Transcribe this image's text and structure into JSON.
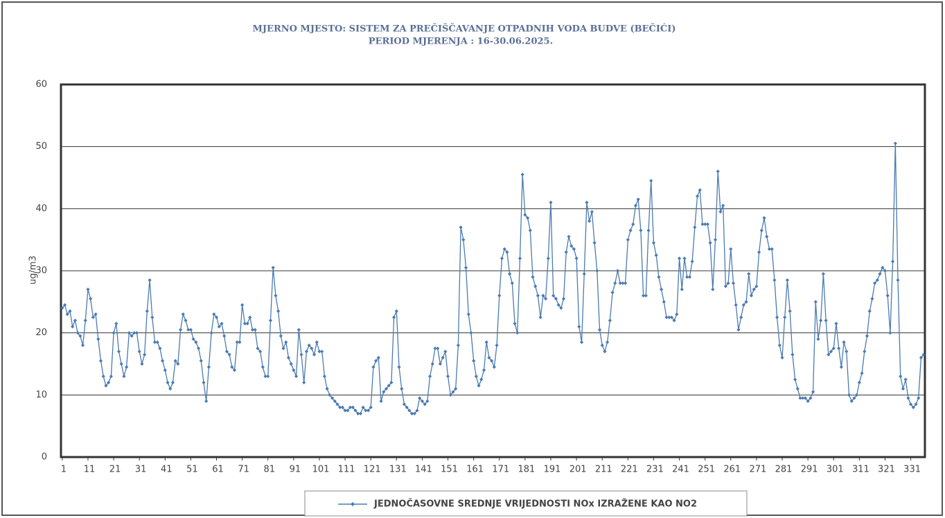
{
  "chart_data": {
    "type": "line",
    "title": "MJERNO MJESTO: SISTEM ZA PREČIŠČAVANJE  OTPADNIH VODA BUDVE (BEČIĆI)",
    "subtitle": "PERIOD MJERENJA : 16-30.06.2025.",
    "ylabel": "ug/m3",
    "x": [
      1,
      2,
      3,
      4,
      5,
      6,
      7,
      8,
      9,
      10,
      11,
      12,
      13,
      14,
      15,
      16,
      17,
      18,
      19,
      20,
      21,
      22,
      23,
      24,
      25,
      26,
      27,
      28,
      29,
      30,
      31,
      32,
      33,
      34,
      35,
      36,
      37,
      38,
      39,
      40,
      41,
      42,
      43,
      44,
      45,
      46,
      47,
      48,
      49,
      50,
      51,
      52,
      53,
      54,
      55,
      56,
      57,
      58,
      59,
      60,
      61,
      62,
      63,
      64,
      65,
      66,
      67,
      68,
      69,
      70,
      71,
      72,
      73,
      74,
      75,
      76,
      77,
      78,
      79,
      80,
      81,
      82,
      83,
      84,
      85,
      86,
      87,
      88,
      89,
      90,
      91,
      92,
      93,
      94,
      95,
      96,
      97,
      98,
      99,
      100,
      101,
      102,
      103,
      104,
      105,
      106,
      107,
      108,
      109,
      110,
      111,
      112,
      113,
      114,
      115,
      116,
      117,
      118,
      119,
      120,
      121,
      122,
      123,
      124,
      125,
      126,
      127,
      128,
      129,
      130,
      131,
      132,
      133,
      134,
      135,
      136,
      137,
      138,
      139,
      140,
      141,
      142,
      143,
      144,
      145,
      146,
      147,
      148,
      149,
      150,
      151,
      152,
      153,
      154,
      155,
      156,
      157,
      158,
      159,
      160,
      161,
      162,
      163,
      164,
      165,
      166,
      167,
      168,
      169,
      170,
      171,
      172,
      173,
      174,
      175,
      176,
      177,
      178,
      179,
      180,
      181,
      182,
      183,
      184,
      185,
      186,
      187,
      188,
      189,
      190,
      191,
      192,
      193,
      194,
      195,
      196,
      197,
      198,
      199,
      200,
      201,
      202,
      203,
      204,
      205,
      206,
      207,
      208,
      209,
      210,
      211,
      212,
      213,
      214,
      215,
      216,
      217,
      218,
      219,
      220,
      221,
      222,
      223,
      224,
      225,
      226,
      227,
      228,
      229,
      230,
      231,
      232,
      233,
      234,
      235,
      236,
      237,
      238,
      239,
      240,
      241,
      242,
      243,
      244,
      245,
      246,
      247,
      248,
      249,
      250,
      251,
      252,
      253,
      254,
      255,
      256,
      257,
      258,
      259,
      260,
      261,
      262,
      263,
      264,
      265,
      266,
      267,
      268,
      269,
      270,
      271,
      272,
      273,
      274,
      275,
      276,
      277,
      278,
      279,
      280,
      281,
      282,
      283,
      284,
      285,
      286,
      287,
      288,
      289,
      290,
      291,
      292,
      293,
      294,
      295,
      296,
      297,
      298,
      299,
      300,
      301,
      302,
      303,
      304,
      305,
      306,
      307,
      308,
      309,
      310,
      311,
      312,
      313,
      314,
      315,
      316,
      317,
      318,
      319,
      320,
      321,
      322,
      323,
      324,
      325,
      326,
      327,
      328,
      329,
      330,
      331,
      332,
      333,
      334,
      335,
      336
    ],
    "series": [
      {
        "name": "JEDNOČASOVNE SREDNJE VRIJEDNOSTI NOx IZRAŽENE KAO NO2",
        "color": "#4a7ab0",
        "values": [
          24,
          24.5,
          23,
          23.5,
          21,
          22,
          20,
          19.5,
          18,
          22,
          27,
          25.5,
          22.5,
          23,
          19,
          15.5,
          13,
          11.5,
          12,
          13,
          20,
          21.5,
          17,
          15,
          13,
          14.5,
          20,
          19.5,
          20,
          20,
          17,
          15,
          16.5,
          23.5,
          28.5,
          22.5,
          18.5,
          18.5,
          17.5,
          15.5,
          14,
          12,
          11,
          12,
          15.5,
          15,
          20.5,
          23,
          22,
          20.5,
          20.5,
          19,
          18.5,
          17.5,
          15.5,
          12,
          9,
          14.5,
          20,
          23,
          22.5,
          21,
          21.5,
          19.5,
          17,
          16.5,
          14.5,
          14,
          18.5,
          18.5,
          24.5,
          21.5,
          21.5,
          22.5,
          20.5,
          20.5,
          17.5,
          17,
          14.5,
          13,
          13,
          22,
          30.5,
          26,
          23.5,
          19.5,
          17.5,
          18.5,
          16,
          15,
          14,
          13,
          20.5,
          16.5,
          12,
          17,
          18,
          17.5,
          16.5,
          18.5,
          17,
          17,
          13,
          11,
          10,
          9.5,
          9,
          8.5,
          8,
          8,
          7.5,
          7.5,
          8,
          8,
          7.5,
          7,
          7,
          8,
          7.5,
          7.5,
          8,
          14.5,
          15.5,
          16,
          9,
          10.5,
          11,
          11.5,
          12,
          22.5,
          23.5,
          14.5,
          11,
          8.5,
          8,
          7.5,
          7,
          7,
          7.5,
          9.5,
          9,
          8.5,
          9,
          13,
          15,
          17.5,
          17.5,
          15,
          16,
          17,
          13,
          10,
          10.5,
          11,
          18,
          37,
          35,
          30.5,
          23,
          20,
          15.5,
          13,
          11.5,
          12.5,
          14,
          18.5,
          16,
          15.5,
          14.5,
          18,
          26,
          32,
          33.5,
          33,
          29.5,
          28,
          21.5,
          20,
          32,
          45.5,
          39,
          38.5,
          36.5,
          29,
          27.5,
          26,
          22.5,
          26,
          25.5,
          32,
          41,
          26,
          25.5,
          24.5,
          24,
          25.5,
          33,
          35.5,
          34,
          33.5,
          32,
          21,
          18.5,
          29.5,
          41,
          38,
          39.5,
          34.5,
          30,
          20.5,
          18,
          17,
          18.5,
          22,
          26.5,
          28,
          30,
          28,
          28,
          28,
          35,
          36.5,
          37.5,
          40.5,
          41.5,
          36.5,
          26,
          26,
          36.5,
          44.5,
          34.5,
          32.5,
          29,
          27,
          25,
          22.5,
          22.5,
          22.5,
          22,
          23,
          32,
          27,
          32,
          29,
          29,
          31.5,
          37,
          42,
          43,
          37.5,
          37.5,
          37.5,
          34.5,
          27,
          35,
          46,
          39.5,
          40.5,
          27.5,
          28,
          33.5,
          28,
          24.5,
          20.5,
          22.5,
          24.5,
          25,
          29.5,
          26,
          27,
          27.5,
          33,
          36.5,
          38.5,
          35.5,
          33.5,
          33.5,
          28.5,
          22.5,
          18,
          16,
          22.5,
          28.5,
          23.5,
          16.5,
          12.5,
          11,
          9.5,
          9.5,
          9.5,
          9,
          9.5,
          10.5,
          25,
          19,
          22,
          29.5,
          22,
          16.5,
          17,
          17.5,
          21.5,
          17.5,
          14.5,
          18.5,
          17,
          10,
          9,
          9.5,
          10,
          12,
          13.5,
          17,
          19.5,
          23.5,
          25.5,
          28,
          28.5,
          29.5,
          30.5,
          30,
          26,
          20,
          31.5,
          50.5,
          28.5,
          13,
          11,
          12.5,
          9.5,
          8.5,
          8,
          8.5,
          9.5,
          16,
          16.5
        ]
      }
    ],
    "xlim": [
      0.5,
      336.5
    ],
    "xticks": [
      1,
      11,
      21,
      31,
      41,
      51,
      61,
      71,
      81,
      91,
      101,
      111,
      121,
      131,
      141,
      151,
      161,
      171,
      181,
      191,
      201,
      211,
      221,
      231,
      241,
      251,
      261,
      271,
      281,
      291,
      301,
      311,
      321,
      331
    ],
    "ylim": [
      0,
      60
    ],
    "yticks": [
      0,
      10,
      20,
      30,
      40,
      50,
      60
    ],
    "grid": true,
    "legend": "bottom"
  }
}
